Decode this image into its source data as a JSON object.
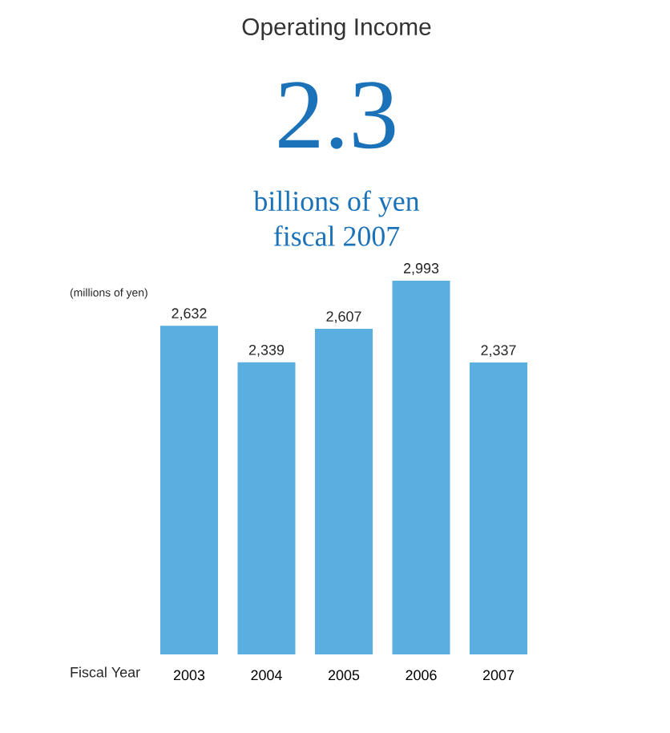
{
  "chart_data": {
    "type": "bar",
    "title": "Operating Income",
    "annotations": [
      "2.3",
      "billions of yen",
      "fiscal 2007"
    ],
    "ylabel": "(millions of yen)",
    "xlabel": "Fiscal Year",
    "categories": [
      "2003",
      "2004",
      "2005",
      "2006",
      "2007"
    ],
    "values": [
      2632,
      2339,
      2607,
      2993,
      2337
    ],
    "value_labels": [
      "2,632",
      "2,339",
      "2,607",
      "2,993",
      "2,337"
    ],
    "color": "#5aaee0"
  }
}
